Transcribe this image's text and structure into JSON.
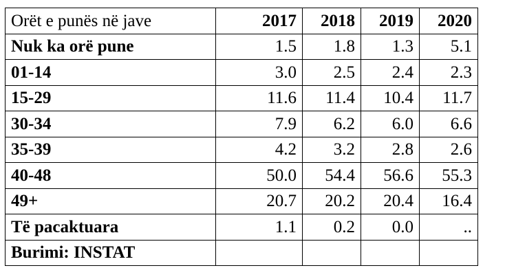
{
  "table": {
    "header": {
      "label": "Orët e punës në jave",
      "years": [
        "2017",
        "2018",
        "2019",
        "2020"
      ]
    },
    "rows": [
      {
        "label": "Nuk ka orë pune",
        "values": [
          "1.5",
          "1.8",
          "1.3",
          "5.1"
        ]
      },
      {
        "label": "01-14",
        "values": [
          "3.0",
          "2.5",
          "2.4",
          "2.3"
        ]
      },
      {
        "label": "15-29",
        "values": [
          "11.6",
          "11.4",
          "10.4",
          "11.7"
        ]
      },
      {
        "label": "30-34",
        "values": [
          "7.9",
          "6.2",
          "6.0",
          "6.6"
        ]
      },
      {
        "label": "35-39",
        "values": [
          "4.2",
          "3.2",
          "2.8",
          "2.6"
        ]
      },
      {
        "label": "40-48",
        "values": [
          "50.0",
          "54.4",
          "56.6",
          "55.3"
        ]
      },
      {
        "label": "49+",
        "values": [
          "20.7",
          "20.2",
          "20.4",
          "16.4"
        ]
      },
      {
        "label": "Të pacaktuara",
        "values": [
          "1.1",
          "0.2",
          "0.0",
          ".."
        ]
      }
    ],
    "source": {
      "label": "Burimi: INSTAT",
      "values": [
        "",
        "",
        "",
        ""
      ]
    }
  }
}
